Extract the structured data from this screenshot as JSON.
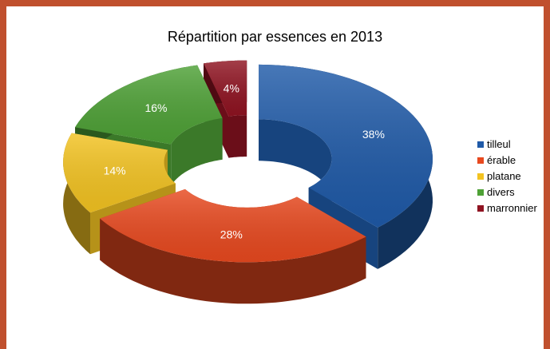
{
  "chart_data": {
    "type": "pie",
    "style": "3d-exploded-doughnut",
    "title": "Répartition par essences en 2013",
    "categories": [
      "tilleul",
      "érable",
      "platane",
      "divers",
      "marronnier"
    ],
    "values": [
      38,
      28,
      14,
      16,
      4
    ],
    "labels": [
      "38%",
      "28%",
      "14%",
      "16%",
      "4%"
    ],
    "colors": [
      "#1f5aa8",
      "#e8491f",
      "#f3c321",
      "#4ea136",
      "#8f1321"
    ],
    "legend_position": "right"
  }
}
